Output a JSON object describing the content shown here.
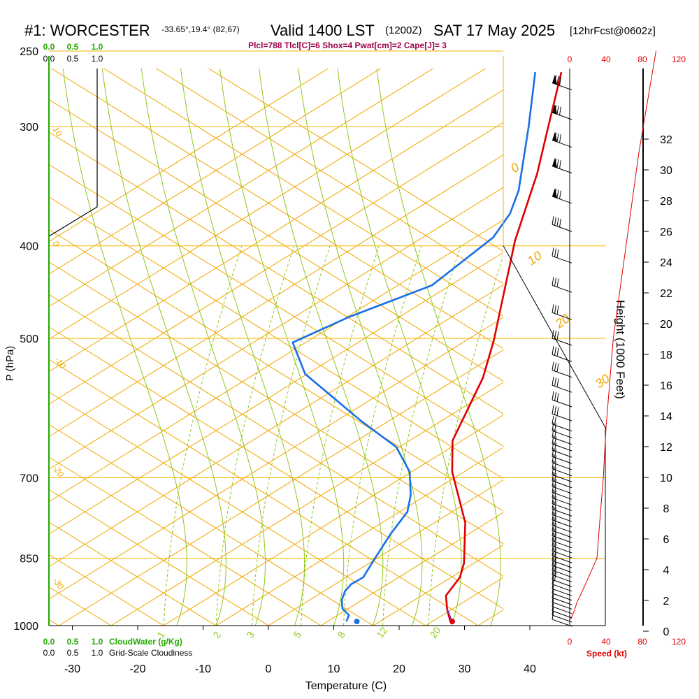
{
  "header": {
    "station": "#1: WORCESTER",
    "coords": "-33.65°,19.4° (82,67)",
    "valid": "Valid 1400 LST",
    "zulu": "(1200Z)",
    "date": "SAT 17 May 2025",
    "forecast": "[12hrFcst@0602z]",
    "indices": "Plcl=788 Tlcl[C]=6 Shox=4 Pwat[cm]=2 Cape[J]= 3"
  },
  "colors": {
    "isobar": "#f4b400",
    "dry_adiabat": "#f0a800",
    "moist_adiabat": "#8fc81a",
    "mixing_ratio": "#8fc81a",
    "temperature": "#e00000",
    "dewpoint": "#1a6fe8",
    "green_text": "#22aa00",
    "red_text": "#e00000",
    "indices_text": "#a0004a"
  },
  "chart_data": {
    "type": "line",
    "title": "#1: WORCESTER",
    "xlabel": "Temperature (C)",
    "ylabel": "P (hPa)",
    "right_label": "Height (1000 Feet)",
    "speed_label": "Speed (kt)",
    "x_ticks": [
      -30,
      -20,
      -10,
      0,
      10,
      20,
      30,
      40
    ],
    "p_ticks": [
      250,
      300,
      400,
      500,
      700,
      850,
      1000
    ],
    "height_ticks": [
      0,
      2,
      4,
      6,
      8,
      10,
      12,
      14,
      16,
      18,
      20,
      22,
      24,
      26,
      28,
      30,
      32
    ],
    "speed_ticks": [
      0,
      40,
      80,
      120
    ],
    "cloud_scale_ticks": [
      "0.0",
      "0.5",
      "1.0"
    ],
    "cloudwater_label": "CloudWater (g/Kg)",
    "cloudiness_label": "Grid-Scale Cloudiness",
    "dry_adiabat_labels": [
      "0",
      "10",
      "20",
      "30",
      "-10",
      "-20",
      "-30",
      "10"
    ],
    "mixing_ratio_labels": [
      "1",
      "2",
      "3",
      "5",
      "8",
      "12",
      "20"
    ],
    "series": [
      {
        "name": "Temperature",
        "points": [
          [
            1.2,
            263
          ],
          [
            3.5,
            300
          ],
          [
            5.5,
            336
          ],
          [
            7.4,
            395
          ],
          [
            12.0,
            502
          ],
          [
            13.3,
            550
          ],
          [
            13.6,
            640
          ],
          [
            16.0,
            690
          ],
          [
            22.0,
            780
          ],
          [
            25.0,
            860
          ],
          [
            25.5,
            890
          ],
          [
            24.8,
            930
          ],
          [
            26.0,
            960
          ],
          [
            27.5,
            990
          ]
        ]
      },
      {
        "name": "Dewpoint",
        "points": [
          [
            -2.8,
            263
          ],
          [
            0.5,
            300
          ],
          [
            4.0,
            350
          ],
          [
            4.5,
            370
          ],
          [
            3.8,
            392
          ],
          [
            -1.8,
            440
          ],
          [
            -12.0,
            475
          ],
          [
            -18.6,
            505
          ],
          [
            -14.2,
            545
          ],
          [
            -2.0,
            610
          ],
          [
            5.5,
            650
          ],
          [
            9.5,
            690
          ],
          [
            11.5,
            730
          ],
          [
            12.3,
            760
          ],
          [
            11.5,
            800
          ],
          [
            11.0,
            850
          ],
          [
            10.7,
            890
          ],
          [
            9.4,
            905
          ],
          [
            9.0,
            920
          ],
          [
            9.2,
            940
          ],
          [
            10.0,
            960
          ],
          [
            11.5,
            975
          ],
          [
            11.6,
            990
          ]
        ]
      }
    ],
    "surface_points": {
      "temperature": [
        27.8,
        990
      ],
      "dewpoint": [
        13.2,
        990
      ]
    },
    "wind_speed_profile": [
      [
        1,
        985
      ],
      [
        5,
        965
      ],
      [
        8,
        945
      ],
      [
        14,
        920
      ],
      [
        30,
        850
      ],
      [
        33,
        780
      ],
      [
        37,
        700
      ],
      [
        40,
        620
      ],
      [
        48,
        500
      ],
      [
        62,
        400
      ],
      [
        76,
        320
      ],
      [
        95,
        250
      ]
    ],
    "wind_barb_levels": [
      985,
      975,
      965,
      955,
      945,
      935,
      925,
      915,
      905,
      895,
      885,
      875,
      865,
      855,
      845,
      835,
      825,
      815,
      805,
      795,
      785,
      775,
      765,
      755,
      745,
      735,
      725,
      715,
      705,
      695,
      685,
      675,
      665,
      655,
      645,
      635,
      625,
      615,
      600,
      580,
      560,
      540,
      520,
      500,
      470,
      440,
      410,
      380,
      355,
      330,
      310,
      290,
      270
    ]
  }
}
